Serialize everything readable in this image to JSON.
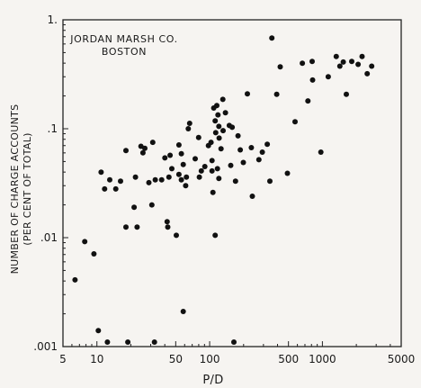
{
  "colors": {
    "background": "#f3e8c4",
    "paper": "#f6f4f1",
    "ink": "#111111"
  },
  "chart_data": {
    "type": "scatter",
    "title": [
      "JORDAN MARSH CO.",
      "BOSTON"
    ],
    "xlabel": "P/D",
    "ylabel": [
      "NUMBER OF CHARGE ACCOUNTS",
      "(PER CENT OF TOTAL)"
    ],
    "xscale": "log",
    "yscale": "log",
    "xlim": [
      5,
      5000
    ],
    "ylim": [
      0.001,
      1
    ],
    "grid": false,
    "x_ticks": [
      {
        "value": 5,
        "label": "5"
      },
      {
        "value": 10,
        "label": "10"
      },
      {
        "value": 50,
        "label": "50"
      },
      {
        "value": 100,
        "label": "100"
      },
      {
        "value": 500,
        "label": "500"
      },
      {
        "value": 1000,
        "label": "1000"
      },
      {
        "value": 5000,
        "label": "5000"
      }
    ],
    "y_ticks": [
      {
        "value": 1,
        "label": "1."
      },
      {
        "value": 0.1,
        "label": ".1"
      },
      {
        "value": 0.01,
        "label": ".01"
      },
      {
        "value": 0.001,
        "label": ".001"
      }
    ],
    "points": [
      [
        6.4,
        0.0041
      ],
      [
        7.8,
        0.0092
      ],
      [
        9.4,
        0.0071
      ],
      [
        10.3,
        0.0014
      ],
      [
        10.9,
        0.04
      ],
      [
        11.7,
        0.028
      ],
      [
        12.4,
        0.0011
      ],
      [
        13,
        0.034
      ],
      [
        14.7,
        0.028
      ],
      [
        16.2,
        0.033
      ],
      [
        18.1,
        0.0125
      ],
      [
        18.1,
        0.063
      ],
      [
        18.8,
        0.0011
      ],
      [
        21.4,
        0.019
      ],
      [
        22,
        0.036
      ],
      [
        22.7,
        0.0125
      ],
      [
        24.6,
        0.069
      ],
      [
        25.6,
        0.06
      ],
      [
        26.6,
        0.066
      ],
      [
        28.9,
        0.032
      ],
      [
        30.7,
        0.02
      ],
      [
        31.3,
        0.075
      ],
      [
        32.4,
        0.0011
      ],
      [
        32.9,
        0.034
      ],
      [
        37.5,
        0.034
      ],
      [
        40.1,
        0.054
      ],
      [
        42,
        0.014
      ],
      [
        42.5,
        0.0125
      ],
      [
        43.5,
        0.036
      ],
      [
        44.6,
        0.057
      ],
      [
        46.2,
        0.043
      ],
      [
        50.6,
        0.0105
      ],
      [
        53.4,
        0.038
      ],
      [
        53.4,
        0.071
      ],
      [
        56.1,
        0.034
      ],
      [
        56.1,
        0.059
      ],
      [
        58.3,
        0.0021
      ],
      [
        58.3,
        0.047
      ],
      [
        61.3,
        0.03
      ],
      [
        62.2,
        0.036
      ],
      [
        64.6,
        0.1
      ],
      [
        66.4,
        0.112
      ],
      [
        74.4,
        0.053
      ],
      [
        79.8,
        0.083
      ],
      [
        81,
        0.036
      ],
      [
        84.4,
        0.041
      ],
      [
        90.7,
        0.045
      ],
      [
        97.5,
        0.07
      ],
      [
        102.9,
        0.075
      ],
      [
        104.9,
        0.041
      ],
      [
        104.9,
        0.051
      ],
      [
        107,
        0.026
      ],
      [
        108.6,
        0.155
      ],
      [
        111.9,
        0.118
      ],
      [
        111.9,
        0.0105
      ],
      [
        113.1,
        0.092
      ],
      [
        115.7,
        0.163
      ],
      [
        117.1,
        0.043
      ],
      [
        118.6,
        0.134
      ],
      [
        120.6,
        0.105
      ],
      [
        120.6,
        0.035
      ],
      [
        121.3,
        0.082
      ],
      [
        126.1,
        0.0655
      ],
      [
        130.8,
        0.186
      ],
      [
        131.5,
        0.096
      ],
      [
        138,
        0.14
      ],
      [
        149.4,
        0.107
      ],
      [
        153.8,
        0.046
      ],
      [
        158.5,
        0.103
      ],
      [
        164,
        0.0011
      ],
      [
        169.7,
        0.033
      ],
      [
        178.4,
        0.086
      ],
      [
        186.8,
        0.064
      ],
      [
        198.8,
        0.049
      ],
      [
        216,
        0.209
      ],
      [
        234.3,
        0.067
      ],
      [
        238.9,
        0.024
      ],
      [
        273.3,
        0.052
      ],
      [
        293.2,
        0.061
      ],
      [
        324.4,
        0.072
      ],
      [
        342,
        0.033
      ],
      [
        356,
        0.68
      ],
      [
        393.2,
        0.207
      ],
      [
        422.7,
        0.37
      ],
      [
        489.8,
        0.039
      ],
      [
        572.6,
        0.116
      ],
      [
        663.9,
        0.4
      ],
      [
        744.4,
        0.18
      ],
      [
        810.8,
        0.415
      ],
      [
        818.5,
        0.28
      ],
      [
        969.7,
        0.061
      ],
      [
        1127,
        0.3
      ],
      [
        1328,
        0.46
      ],
      [
        1427,
        0.375
      ],
      [
        1532,
        0.41
      ],
      [
        1630,
        0.207
      ],
      [
        1821,
        0.415
      ],
      [
        2075,
        0.39
      ],
      [
        2250,
        0.46
      ],
      [
        2496,
        0.32
      ],
      [
        2737,
        0.375
      ]
    ]
  }
}
